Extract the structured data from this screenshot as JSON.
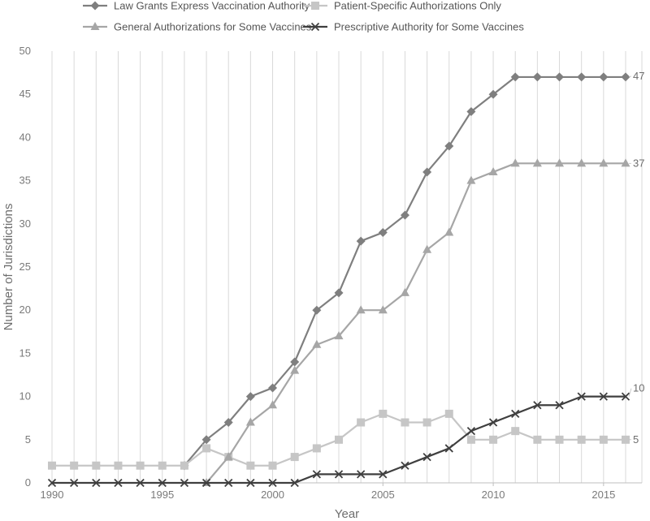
{
  "chart_data": {
    "type": "line",
    "xlabel": "Year",
    "ylabel": "Number of Jurisdictions",
    "xlim": [
      1990,
      2016
    ],
    "ylim": [
      0,
      50
    ],
    "x_ticks": [
      1990,
      1995,
      2000,
      2005,
      2010,
      2015
    ],
    "y_ticks": [
      0,
      5,
      10,
      15,
      20,
      25,
      30,
      35,
      40,
      45,
      50
    ],
    "grid": "vertical",
    "legend_position": "top",
    "series": [
      {
        "name": "Law Grants Express Vaccination Authority",
        "marker": "diamond",
        "color": "#7f7f7f",
        "x": [
          1996,
          1997,
          1998,
          1999,
          2000,
          2001,
          2002,
          2003,
          2004,
          2005,
          2006,
          2007,
          2008,
          2009,
          2010,
          2011,
          2012,
          2013,
          2014,
          2015,
          2016
        ],
        "y": [
          2,
          5,
          7,
          10,
          11,
          14,
          20,
          22,
          28,
          29,
          31,
          36,
          39,
          43,
          45,
          47,
          47,
          47,
          47,
          47,
          47
        ],
        "end_label": "47"
      },
      {
        "name": "Patient-Specific Authorizations Only",
        "marker": "square",
        "color": "#c6c6c6",
        "x": [
          1990,
          1991,
          1992,
          1993,
          1994,
          1995,
          1996,
          1997,
          1998,
          1999,
          2000,
          2001,
          2002,
          2003,
          2004,
          2005,
          2006,
          2007,
          2008,
          2009,
          2010,
          2011,
          2012,
          2013,
          2014,
          2015,
          2016
        ],
        "y": [
          2,
          2,
          2,
          2,
          2,
          2,
          2,
          4,
          3,
          2,
          2,
          3,
          4,
          5,
          7,
          8,
          7,
          7,
          8,
          5,
          5,
          6,
          5,
          5,
          5,
          5,
          5
        ],
        "end_label": "5"
      },
      {
        "name": "General Authorizations for Some Vaccines",
        "marker": "triangle",
        "color": "#a6a6a6",
        "x": [
          1997,
          1998,
          1999,
          2000,
          2001,
          2002,
          2003,
          2004,
          2005,
          2006,
          2007,
          2008,
          2009,
          2010,
          2011,
          2012,
          2013,
          2014,
          2015,
          2016
        ],
        "y": [
          0,
          3,
          7,
          9,
          13,
          16,
          17,
          20,
          20,
          22,
          27,
          29,
          35,
          36,
          37,
          37,
          37,
          37,
          37,
          37
        ],
        "end_label": "37"
      },
      {
        "name": "Prescriptive Authority for Some Vaccines",
        "marker": "x",
        "color": "#3f3f3f",
        "x": [
          1990,
          1991,
          1992,
          1993,
          1994,
          1995,
          1996,
          1997,
          1998,
          1999,
          2000,
          2001,
          2002,
          2003,
          2004,
          2005,
          2006,
          2007,
          2008,
          2009,
          2010,
          2011,
          2012,
          2013,
          2014,
          2015,
          2016
        ],
        "y": [
          0,
          0,
          0,
          0,
          0,
          0,
          0,
          0,
          0,
          0,
          0,
          0,
          1,
          1,
          1,
          1,
          2,
          3,
          4,
          6,
          7,
          8,
          9,
          9,
          10,
          10,
          10
        ],
        "end_label": "10"
      }
    ]
  }
}
